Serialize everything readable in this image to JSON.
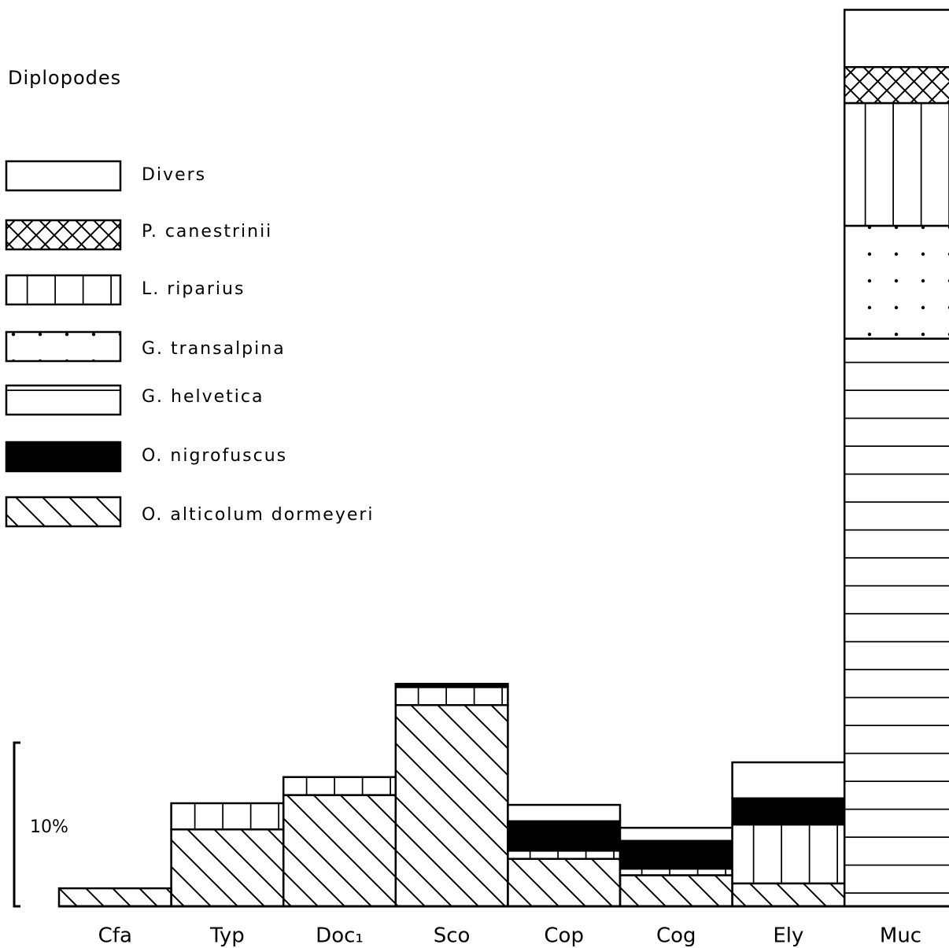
{
  "chart_data": {
    "type": "stacked_bar",
    "title": "Diplopodes",
    "categories": [
      "Cfa",
      "Typ",
      "Doc₁",
      "Sco",
      "Cop",
      "Cog",
      "Ely",
      "Muc"
    ],
    "series": [
      {
        "name": "O. alticolum dormeyeri",
        "color": "#ffffff",
        "values": [
          1.1,
          4.7,
          6.8,
          12.3,
          2.9,
          1.9,
          1.4,
          null
        ]
      },
      {
        "name": "G. helvetica",
        "color": "#ffffff",
        "values": [
          null,
          null,
          null,
          null,
          null,
          null,
          null,
          34.7
        ]
      },
      {
        "name": "G. transalpina",
        "color": "#ffffff",
        "values": [
          null,
          null,
          null,
          null,
          null,
          null,
          null,
          6.9
        ]
      },
      {
        "name": "L. riparius",
        "color": "#ffffff",
        "values": [
          null,
          1.6,
          1.1,
          1.1,
          0.5,
          0.4,
          3.6,
          7.5
        ]
      },
      {
        "name": "O. nigrofuscus",
        "color": "#000000",
        "values": [
          null,
          null,
          null,
          0.2,
          1.8,
          1.7,
          1.6,
          null
        ]
      },
      {
        "name": "P. canestrinii",
        "color": "#ffffff",
        "values": [
          null,
          null,
          null,
          null,
          null,
          null,
          null,
          2.2
        ]
      },
      {
        "name": "Divers",
        "color": "#ffffff",
        "values": [
          null,
          null,
          null,
          null,
          1.0,
          0.8,
          2.2,
          3.5
        ]
      }
    ],
    "ylim": [
      0,
      55.4
    ],
    "scale_bar": {
      "value": 10,
      "label": "10%"
    }
  }
}
